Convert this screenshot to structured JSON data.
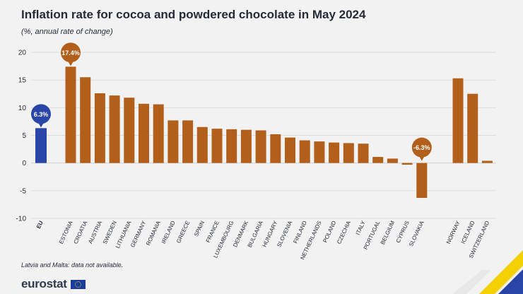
{
  "title": "Inflation rate for cocoa and powdered chocolate in May 2024",
  "subtitle": "(%, annual rate of change)",
  "footnote": "Latvia and Malta: data not available.",
  "brand": "eurostat",
  "colors": {
    "eu_bar": "#2a45a8",
    "country_bar": "#b35f1c",
    "grid": "#d4d4d4",
    "text": "#262b38",
    "background": "#f2f2f2"
  },
  "chart_data": {
    "type": "bar",
    "title": "Inflation rate for cocoa and powdered chocolate in May 2024",
    "ylabel": "(%, annual rate of change)",
    "ylim": [
      -10,
      20
    ],
    "yticks": [
      20,
      15,
      10,
      5,
      0,
      -5,
      -10
    ],
    "categories": [
      "EU",
      "ESTONIA",
      "CROATIA",
      "AUSTRIA",
      "SWEDEN",
      "LITHUANIA",
      "GERMANY",
      "ROMANIA",
      "IRELAND",
      "GREECE",
      "SPAIN",
      "FRANCE",
      "LUXEMBOURG",
      "DENMARK",
      "BULGARIA",
      "HUNGARY",
      "SLOVENIA",
      "FINLAND",
      "NETHERLANDS",
      "POLAND",
      "CZECHIA",
      "ITALY",
      "PORTUGAL",
      "BELGIUM",
      "CYPRUS",
      "SLOVAKIA",
      "NORWAY",
      "ICELAND",
      "SWITZERLAND"
    ],
    "values": [
      6.3,
      17.4,
      15.5,
      12.6,
      12.2,
      11.8,
      10.7,
      10.6,
      7.7,
      7.7,
      6.5,
      6.2,
      6.1,
      6.0,
      5.9,
      5.2,
      4.6,
      4.1,
      3.9,
      3.7,
      3.6,
      3.5,
      1.1,
      0.8,
      -0.3,
      -6.3,
      15.3,
      12.5,
      0.4
    ],
    "callouts": [
      {
        "category": "EU",
        "label": "6.3%"
      },
      {
        "category": "ESTONIA",
        "label": "17.4%"
      },
      {
        "category": "SLOVAKIA",
        "label": "-6.3%"
      }
    ]
  }
}
